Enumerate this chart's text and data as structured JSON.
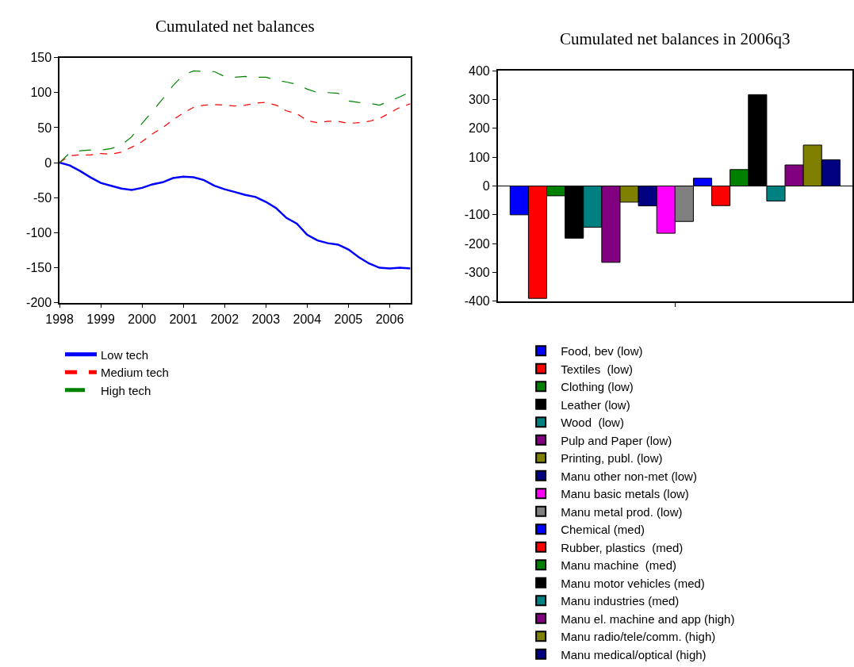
{
  "chart_data": [
    {
      "type": "line",
      "title": "Cumulated net balances",
      "x": [
        1998.0,
        1998.25,
        1998.5,
        1998.75,
        1999.0,
        1999.25,
        1999.5,
        1999.75,
        2000.0,
        2000.25,
        2000.5,
        2000.75,
        2001.0,
        2001.25,
        2001.5,
        2001.75,
        2002.0,
        2002.25,
        2002.5,
        2002.75,
        2003.0,
        2003.25,
        2003.5,
        2003.75,
        2004.0,
        2004.25,
        2004.5,
        2004.75,
        2005.0,
        2005.25,
        2005.5,
        2005.75,
        2006.0,
        2006.25,
        2006.5
      ],
      "series": [
        {
          "name": "Low tech",
          "color": "#0000ff",
          "line_style": "solid",
          "values": [
            0,
            -4,
            -12,
            -21,
            -29,
            -33,
            -37,
            -39,
            -36,
            -31,
            -28,
            -22,
            -20,
            -21,
            -25,
            -33,
            -38,
            -42,
            -46,
            -49,
            -56,
            -65,
            -79,
            -87,
            -103,
            -111,
            -115,
            -117,
            -124,
            -135,
            -144,
            -150,
            -151,
            -150,
            -151
          ]
        },
        {
          "name": "Medium tech",
          "color": "#ff0000",
          "line_style": "dotted",
          "values": [
            0,
            10,
            11,
            11,
            13,
            12,
            15,
            22,
            30,
            41,
            50,
            61,
            71,
            79,
            82,
            83,
            82,
            81,
            82,
            85,
            86,
            82,
            74,
            70,
            60,
            57,
            59,
            59,
            56,
            57,
            59,
            63,
            71,
            79,
            84
          ]
        },
        {
          "name": "High tech",
          "color": "#008000",
          "line_style": "dashed",
          "values": [
            0,
            14,
            17,
            18,
            18,
            20,
            25,
            37,
            56,
            73,
            91,
            110,
            125,
            131,
            130,
            130,
            123,
            122,
            123,
            122,
            122,
            118,
            115,
            112,
            105,
            100,
            100,
            99,
            88,
            86,
            85,
            82,
            88,
            94,
            101
          ]
        }
      ],
      "xlim": [
        1998,
        2006.5
      ],
      "xticks": [
        1998,
        1999,
        2000,
        2001,
        2002,
        2003,
        2004,
        2005,
        2006
      ],
      "ylim": [
        -200,
        150
      ],
      "yticks": [
        -200,
        -150,
        -100,
        -50,
        0,
        50,
        100,
        150
      ],
      "grid": false,
      "legend": "bottom",
      "marker": "none"
    },
    {
      "type": "bar",
      "title": "Cumulated net balances in 2006q3",
      "categories": [
        null
      ],
      "series": [
        {
          "name": "Food, bev (low)",
          "color": "#0000ff",
          "values": [
            -100
          ]
        },
        {
          "name": "Textiles  (low)",
          "color": "#ff0000",
          "values": [
            -390
          ]
        },
        {
          "name": "Clothing (low)",
          "color": "#008000",
          "values": [
            -34
          ]
        },
        {
          "name": "Leather (low)",
          "color": "#000000",
          "values": [
            -181
          ]
        },
        {
          "name": "Wood  (low)",
          "color": "#008080",
          "values": [
            -143
          ]
        },
        {
          "name": "Pulp and Paper (low)",
          "color": "#800080",
          "values": [
            -265
          ]
        },
        {
          "name": "Printing, publ. (low)",
          "color": "#808000",
          "values": [
            -56
          ]
        },
        {
          "name": "Manu other non-met (low)",
          "color": "#000080",
          "values": [
            -69
          ]
        },
        {
          "name": "Manu basic metals (low)",
          "color": "#ff00ff",
          "values": [
            -164
          ]
        },
        {
          "name": "Manu metal prod. (low)",
          "color": "#808080",
          "values": [
            -123
          ]
        },
        {
          "name": "Chemical (med)",
          "color": "#0000ff",
          "values": [
            27
          ]
        },
        {
          "name": "Rubber, plastics  (med)",
          "color": "#ff0000",
          "values": [
            -68
          ]
        },
        {
          "name": "Manu machine  (med)",
          "color": "#008000",
          "values": [
            57
          ]
        },
        {
          "name": "Manu motor vehicles (med)",
          "color": "#000000",
          "values": [
            317
          ]
        },
        {
          "name": "Manu industries (med)",
          "color": "#008080",
          "values": [
            -52
          ]
        },
        {
          "name": "Manu el. machine and app (high)",
          "color": "#800080",
          "values": [
            73
          ]
        },
        {
          "name": "Manu radio/tele/comm. (high)",
          "color": "#808000",
          "values": [
            142
          ]
        },
        {
          "name": "Manu medical/optical (high)",
          "color": "#000080",
          "values": [
            91
          ]
        }
      ],
      "ylim": [
        -400,
        400
      ],
      "yticks": [
        -400,
        -300,
        -200,
        -100,
        0,
        100,
        200,
        300,
        400
      ],
      "grid": false,
      "legend": "bottom",
      "tick_labels": "y",
      "ref_lines": [
        {
          "axis": "y",
          "value": 0,
          "color": "#000000"
        }
      ]
    }
  ]
}
